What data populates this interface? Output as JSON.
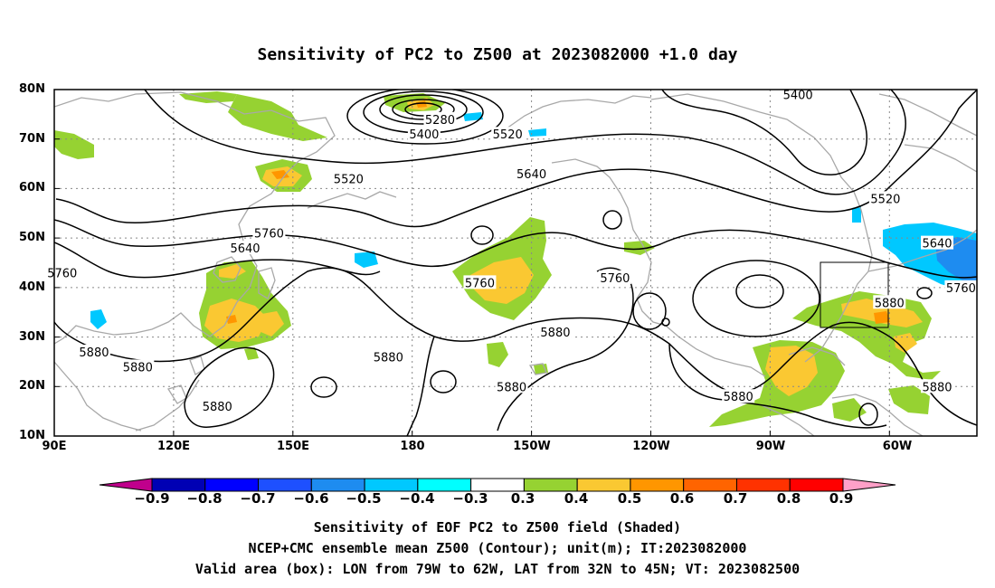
{
  "title": "Sensitivity of PC2 to Z500 at 2023082000 +1.0 day",
  "map": {
    "lat_labels": [
      "80N",
      "70N",
      "60N",
      "50N",
      "40N",
      "30N",
      "20N",
      "10N"
    ],
    "lon_labels": [
      "90E",
      "120E",
      "150E",
      "180",
      "150W",
      "120W",
      "90W",
      "60W"
    ],
    "lon_range_east_deg": [
      90,
      322
    ],
    "lat_range_deg": [
      10,
      80
    ],
    "grid": "dotted",
    "valid_box": {
      "lon_w": [
        79,
        62
      ],
      "lat_n": [
        32,
        45
      ]
    },
    "contour_labels": [
      {
        "text": "5280",
        "lon": 187,
        "lat": 74
      },
      {
        "text": "5400",
        "lon": 183,
        "lat": 71
      },
      {
        "text": "5400",
        "lon": 277,
        "lat": 79
      },
      {
        "text": "5520",
        "lon": 204,
        "lat": 71
      },
      {
        "text": "5520",
        "lon": 164,
        "lat": 62
      },
      {
        "text": "5520",
        "lon": 299,
        "lat": 58
      },
      {
        "text": "5640",
        "lon": 210,
        "lat": 63
      },
      {
        "text": "5640",
        "lon": 138,
        "lat": 48
      },
      {
        "text": "5640",
        "lon": 312,
        "lat": 49
      },
      {
        "text": "5760",
        "lon": 92,
        "lat": 43
      },
      {
        "text": "5760",
        "lon": 144,
        "lat": 51
      },
      {
        "text": "5760",
        "lon": 197,
        "lat": 41
      },
      {
        "text": "5760",
        "lon": 231,
        "lat": 42
      },
      {
        "text": "5760",
        "lon": 318,
        "lat": 40
      },
      {
        "text": "5880",
        "lon": 300,
        "lat": 37
      },
      {
        "text": "5880",
        "lon": 216,
        "lat": 31
      },
      {
        "text": "5880",
        "lon": 100,
        "lat": 27
      },
      {
        "text": "5880",
        "lon": 111,
        "lat": 24
      },
      {
        "text": "5880",
        "lon": 174,
        "lat": 26
      },
      {
        "text": "5880",
        "lon": 131,
        "lat": 16
      },
      {
        "text": "5880",
        "lon": 205,
        "lat": 20
      },
      {
        "text": "5880",
        "lon": 262,
        "lat": 18
      },
      {
        "text": "5880",
        "lon": 312,
        "lat": 20
      }
    ]
  },
  "colorbar": {
    "ticks": [
      "−0.9",
      "−0.8",
      "−0.7",
      "−0.6",
      "−0.5",
      "−0.4",
      "−0.3",
      "0.3",
      "0.4",
      "0.5",
      "0.6",
      "0.7",
      "0.8",
      "0.9"
    ],
    "colors": [
      "#c0008c",
      "#0000b4",
      "#0000ff",
      "#1e50ff",
      "#1e8cf0",
      "#00c8ff",
      "#00ffff",
      "#ffffff",
      "#96d232",
      "#fac832",
      "#ff9600",
      "#ff6400",
      "#ff3200",
      "#ff0000",
      "#ffa0c8"
    ]
  },
  "footer": {
    "line1": "Sensitivity of EOF PC2 to Z500 field (Shaded)",
    "line2": "NCEP+CMC ensemble mean Z500 (Contour); unit(m); IT:2023082000",
    "line3": "Valid area (box): LON from 79W to 62W, LAT from 32N to 45N; VT: 2023082500"
  }
}
